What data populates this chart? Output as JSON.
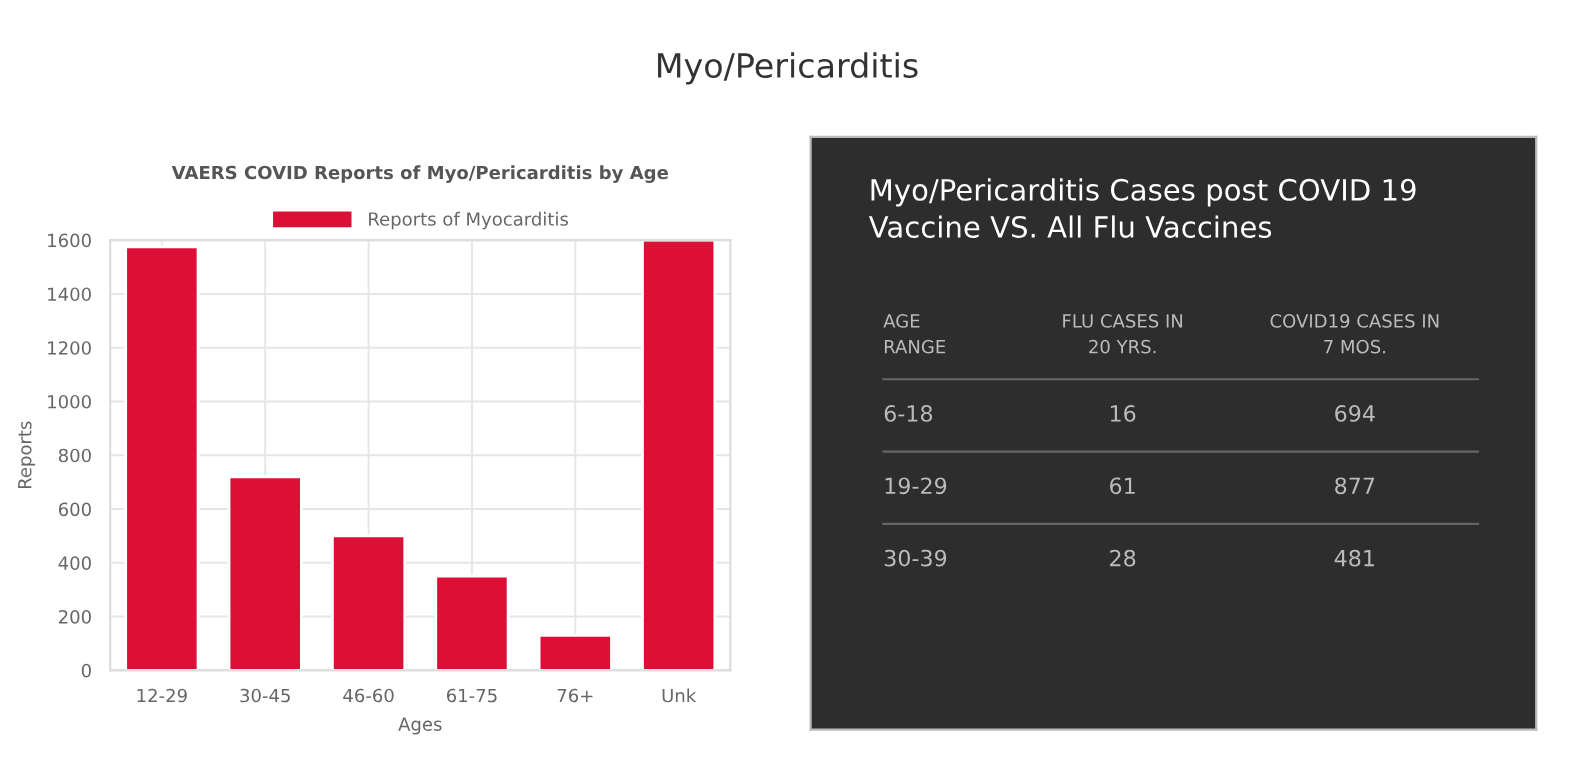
{
  "chart_data": [
    {
      "type": "bar",
      "title": "VAERS COVID Reports of Myo/Pericarditis by Age",
      "xlabel": "Ages",
      "ylabel": "Reports",
      "annotations": [
        "Myo/Pericarditis"
      ],
      "categories": [
        "12-29",
        "30-45",
        "46-60",
        "61-75",
        "76+",
        "Unk"
      ],
      "series": [
        {
          "name": "Reports of Myocarditis",
          "color": "#dc1037",
          "values": [
            1575,
            720,
            500,
            350,
            130,
            1600
          ]
        }
      ],
      "ylim": [
        0,
        1600
      ],
      "yticks": [
        0,
        200,
        400,
        600,
        800,
        1000,
        1200,
        1400,
        1600
      ],
      "grid": true,
      "legend": "top"
    },
    {
      "type": "other",
      "title": "Myo/Pericarditis Cases post COVID 19 Vaccine VS. All Flu Vaccines",
      "annotations": [
        "AGE\nRANGE",
        "FLU CASES IN\n20 YRS.",
        "COVID19 CASES IN\n7 MOS.",
        "6-18",
        "16",
        "694",
        "19-29",
        "61",
        "877",
        "30-39",
        "28",
        "481"
      ]
    }
  ]
}
